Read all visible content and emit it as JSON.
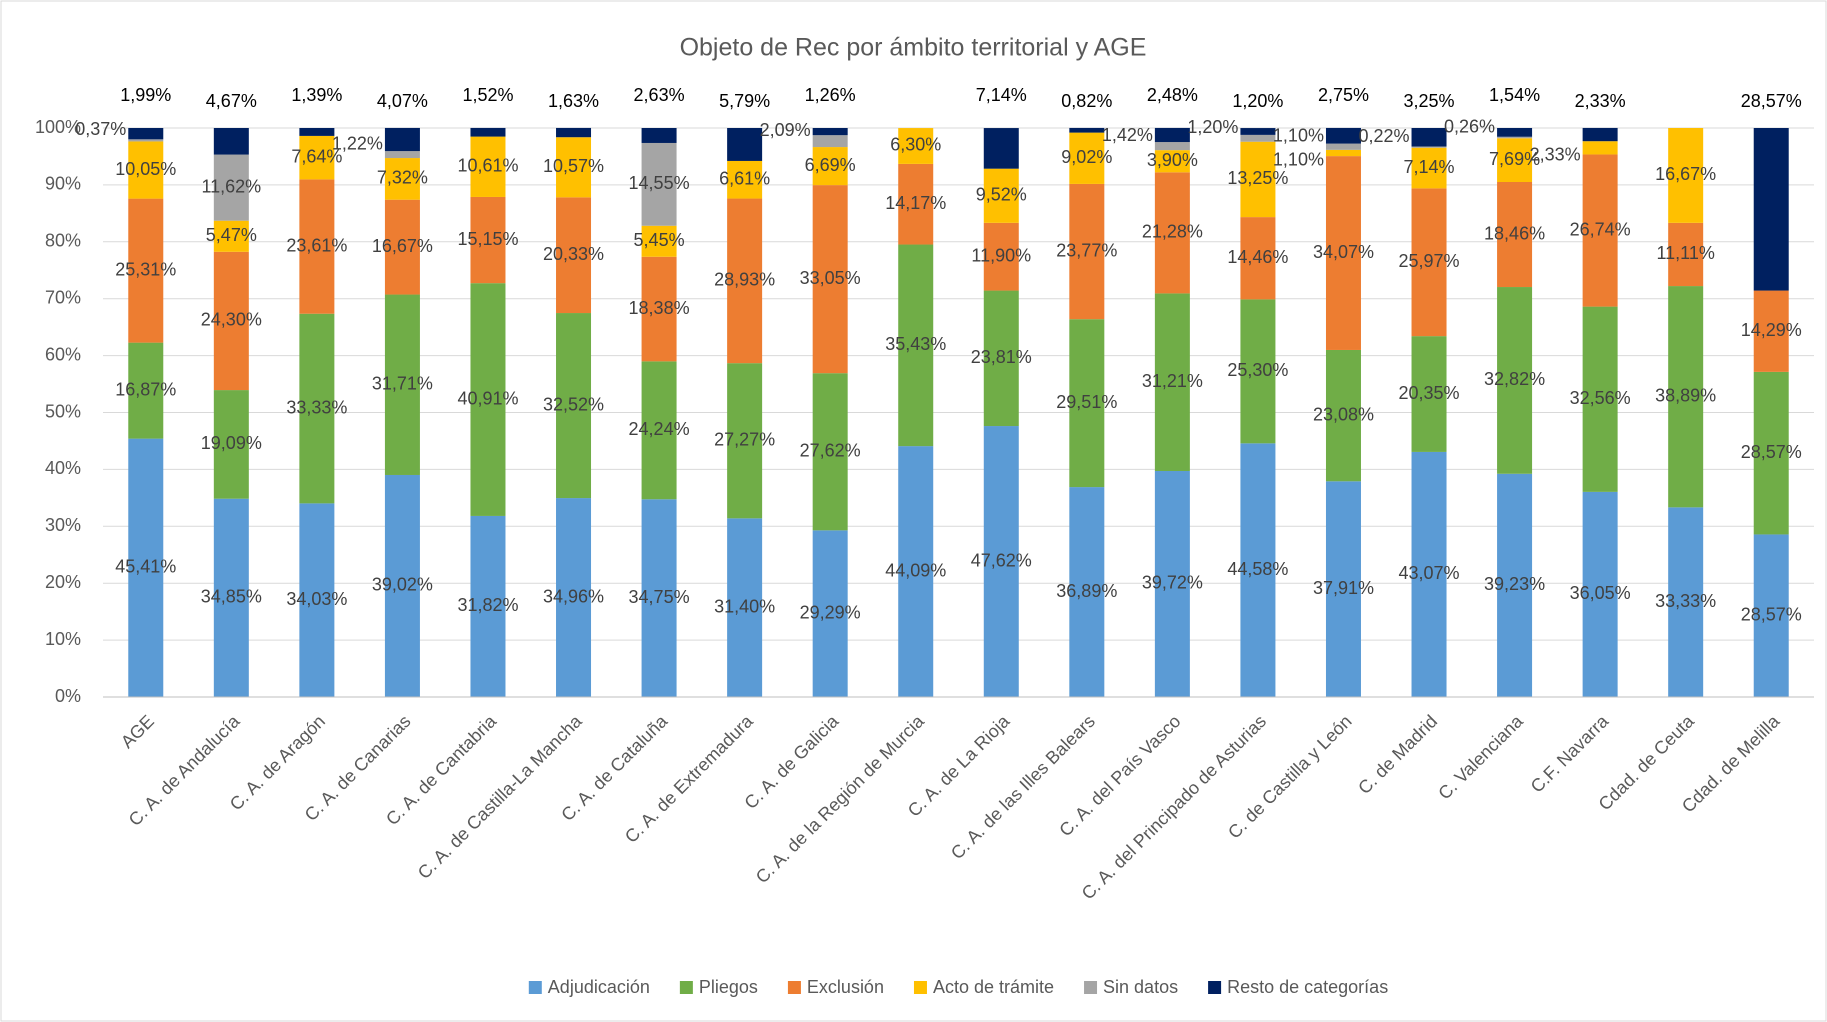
{
  "chart_data": {
    "type": "stacked_bar",
    "title": "Objeto de Rec por ámbito territorial y AGE",
    "categories": [
      "AGE",
      "C. A. de Andalucía",
      "C. A. de Aragón",
      "C. A. de Canarias",
      "C. A. de Cantabria",
      "C. A. de Castilla-La Mancha",
      "C. A. de Cataluña",
      "C. A. de Extremadura",
      "C. A. de Galicia",
      "C. A. de la Región de Murcia",
      "C. A. de La Rioja",
      "C. A. de las Illes Balears",
      "C. A. del País Vasco",
      "C. A. del Principado de Asturias",
      "C. de Castilla y León",
      "C. de Madrid",
      "C. Valenciana",
      "C.F. Navarra",
      "Cdad. de Ceuta",
      "Cdad. de Melilla"
    ],
    "series": [
      {
        "name": "Adjudicación",
        "color": "#5b9bd5",
        "values": [
          45.41,
          34.85,
          34.03,
          39.02,
          31.82,
          34.96,
          34.75,
          31.4,
          29.29,
          44.09,
          47.62,
          36.89,
          39.72,
          44.58,
          37.91,
          43.07,
          39.23,
          36.05,
          33.33,
          28.57
        ],
        "value_labels": [
          "45,41%",
          "34,85%",
          "34,03%",
          "39,02%",
          "31,82%",
          "34,96%",
          "34,75%",
          "31,40%",
          "29,29%",
          "44,09%",
          "47,62%",
          "36,89%",
          "39,72%",
          "44,58%",
          "37,91%",
          "43,07%",
          "39,23%",
          "36,05%",
          "33,33%",
          "28,57%"
        ]
      },
      {
        "name": "Pliegos",
        "color": "#70ad47",
        "values": [
          16.87,
          19.09,
          33.33,
          31.71,
          40.91,
          32.52,
          24.24,
          27.27,
          27.62,
          35.43,
          23.81,
          29.51,
          31.21,
          25.3,
          23.08,
          20.35,
          32.82,
          32.56,
          38.89,
          28.57
        ],
        "value_labels": [
          "16,87%",
          "19,09%",
          "33,33%",
          "31,71%",
          "40,91%",
          "32,52%",
          "24,24%",
          "27,27%",
          "27,62%",
          "35,43%",
          "23,81%",
          "29,51%",
          "31,21%",
          "25,30%",
          "23,08%",
          "20,35%",
          "32,82%",
          "32,56%",
          "38,89%",
          "28,57%"
        ]
      },
      {
        "name": "Exclusión",
        "color": "#ed7d31",
        "values": [
          25.31,
          24.3,
          23.61,
          16.67,
          15.15,
          20.33,
          18.38,
          28.93,
          33.05,
          14.17,
          11.9,
          23.77,
          21.28,
          14.46,
          34.07,
          25.97,
          18.46,
          26.74,
          11.11,
          14.29
        ],
        "value_labels": [
          "25,31%",
          "24,30%",
          "23,61%",
          "16,67%",
          "15,15%",
          "20,33%",
          "18,38%",
          "28,93%",
          "33,05%",
          "14,17%",
          "11,90%",
          "23,77%",
          "21,28%",
          "14,46%",
          "34,07%",
          "25,97%",
          "18,46%",
          "26,74%",
          "11,11%",
          "14,29%"
        ]
      },
      {
        "name": "Acto de trámite",
        "color": "#ffc000",
        "values": [
          10.05,
          5.47,
          7.64,
          7.32,
          10.61,
          10.57,
          5.45,
          6.61,
          6.69,
          6.3,
          9.52,
          9.02,
          3.9,
          13.25,
          1.1,
          7.14,
          7.69,
          2.33,
          16.67,
          null
        ],
        "value_labels": [
          "10,05%",
          "5,47%",
          "7,64%",
          "7,32%",
          "10,61%",
          "10,57%",
          "5,45%",
          "6,61%",
          "6,69%",
          "6,30%",
          "9,52%",
          "9,02%",
          "3,90%",
          "13,25%",
          "1,10%",
          "7,14%",
          "7,69%",
          "2,33%",
          "16,67%",
          null
        ]
      },
      {
        "name": "Sin datos",
        "color": "#a5a5a5",
        "values": [
          0.37,
          11.62,
          null,
          1.22,
          null,
          null,
          14.55,
          null,
          2.09,
          null,
          null,
          null,
          1.42,
          1.2,
          1.1,
          0.22,
          0.26,
          null,
          null,
          null
        ],
        "value_labels": [
          "0,37%",
          "11,62%",
          null,
          "1,22%",
          null,
          null,
          "14,55%",
          null,
          "2,09%",
          null,
          null,
          null,
          "1,42%",
          "1,20%",
          "1,10%",
          "0,22%",
          "0,26%",
          null,
          null,
          null
        ]
      },
      {
        "name": "Resto de categorías",
        "color": "#002060",
        "values": [
          1.99,
          4.67,
          1.39,
          4.07,
          1.52,
          1.63,
          2.63,
          5.79,
          1.26,
          null,
          7.14,
          0.82,
          2.48,
          1.2,
          2.75,
          3.25,
          1.54,
          2.33,
          null,
          28.57
        ],
        "value_labels": [
          "1,99%",
          "4,67%",
          "1,39%",
          "4,07%",
          "1,52%",
          "1,63%",
          "2,63%",
          "5,79%",
          "1,26%",
          null,
          "7,14%",
          "0,82%",
          "2,48%",
          "1,20%",
          "2,75%",
          "3,25%",
          "1,54%",
          "2,33%",
          null,
          "28,57%"
        ]
      }
    ],
    "ylim": [
      0,
      100
    ],
    "yticks": [
      {
        "value": 0,
        "label": "0%"
      },
      {
        "value": 10,
        "label": "10%"
      },
      {
        "value": 20,
        "label": "20%"
      },
      {
        "value": 30,
        "label": "30%"
      },
      {
        "value": 40,
        "label": "40%"
      },
      {
        "value": 50,
        "label": "50%"
      },
      {
        "value": 60,
        "label": "60%"
      },
      {
        "value": 70,
        "label": "70%"
      },
      {
        "value": 80,
        "label": "80%"
      },
      {
        "value": 90,
        "label": "90%"
      },
      {
        "value": 100,
        "label": "100%"
      }
    ],
    "grid": true,
    "legend": "bottom"
  }
}
